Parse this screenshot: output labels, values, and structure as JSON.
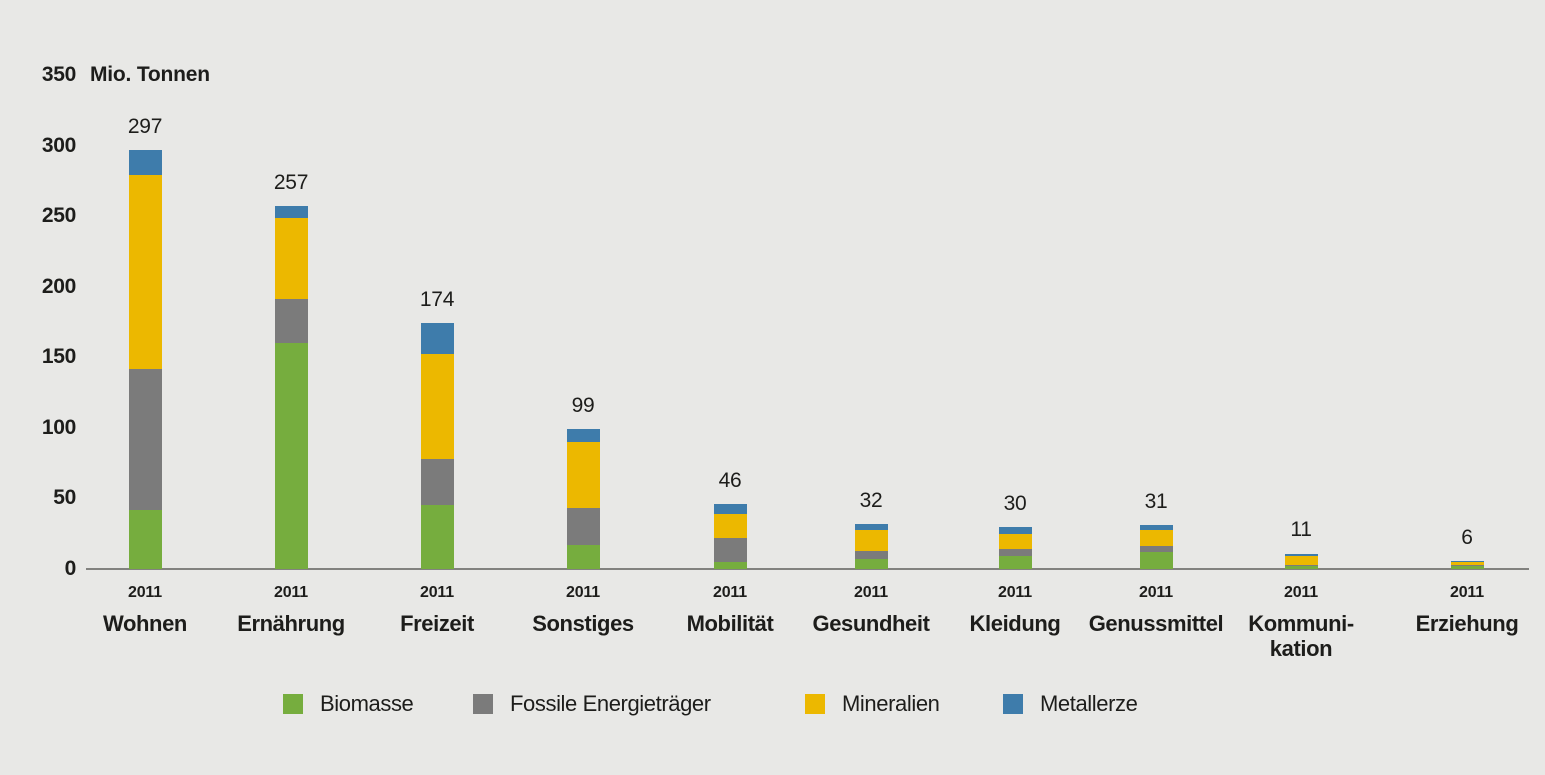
{
  "colors": {
    "background": "#e8e8e6",
    "text": "#1d1d1b",
    "axis_line": "#82827f",
    "biomasse": "#76ad3e",
    "fossile": "#7b7b7b",
    "mineralien": "#ecb800",
    "metallerze": "#3e7cab"
  },
  "chart_data": {
    "type": "bar",
    "stacked": true,
    "title": "Mio. Tonnen",
    "unit_label": "Mio. Tonnen",
    "ylim": [
      0,
      350
    ],
    "yticks": [
      0,
      50,
      100,
      150,
      200,
      250,
      300,
      350
    ],
    "grid": false,
    "legend_position": "bottom",
    "categories": [
      "Wohnen",
      "Ernährung",
      "Freizeit",
      "Sonstiges",
      "Mobilität",
      "Gesundheit",
      "Kleidung",
      "Genussmittel",
      "Kommuni-\nkation",
      "Erziehung"
    ],
    "year_labels": [
      "2011",
      "2011",
      "2011",
      "2011",
      "2011",
      "2011",
      "2011",
      "2011",
      "2011",
      "2011"
    ],
    "totals": [
      297,
      257,
      174,
      99,
      46,
      32,
      30,
      31,
      11,
      6
    ],
    "series": [
      {
        "name": "Biomasse",
        "color": "#76ad3e",
        "values": [
          42,
          160,
          45,
          17,
          5,
          7,
          9,
          12,
          2,
          2
        ]
      },
      {
        "name": "Fossile Energieträger",
        "color": "#7b7b7b",
        "values": [
          100,
          31,
          33,
          26,
          17,
          6,
          5,
          4,
          1,
          1
        ]
      },
      {
        "name": "Mineralien",
        "color": "#ecb800",
        "values": [
          137,
          58,
          74,
          47,
          17,
          15,
          11,
          12,
          6,
          2
        ]
      },
      {
        "name": "Metallerze",
        "color": "#3e7cab",
        "values": [
          18,
          8,
          22,
          9,
          7,
          4,
          5,
          3,
          2,
          1
        ]
      }
    ],
    "legend": [
      "Biomasse",
      "Fossile Energieträger",
      "Mineralien",
      "Metallerze"
    ]
  }
}
